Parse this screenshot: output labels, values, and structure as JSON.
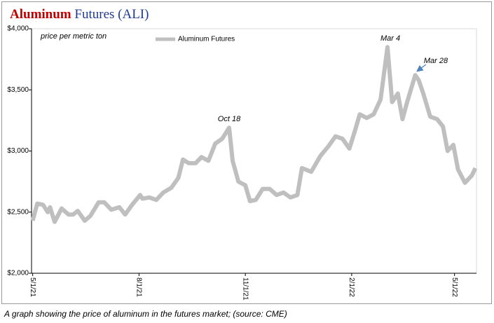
{
  "chart_data": {
    "type": "line",
    "title": {
      "highlight": "Aluminum",
      "rest": "Futures (ALI)"
    },
    "subtitle": "price per metric ton",
    "caption": "A graph showing the price of aluminum in the futures market; (source: CME)",
    "annotations": [
      "Oct 18",
      "Mar 4",
      "Mar 28"
    ],
    "x": [
      "2021-05-01",
      "2021-05-05",
      "2021-05-10",
      "2021-05-14",
      "2021-05-16",
      "2021-05-20",
      "2021-05-26",
      "2021-06-01",
      "2021-06-05",
      "2021-06-09",
      "2021-06-15",
      "2021-06-20",
      "2021-06-27",
      "2021-07-02",
      "2021-07-08",
      "2021-07-15",
      "2021-07-20",
      "2021-07-26",
      "2021-08-02",
      "2021-08-04",
      "2021-08-10",
      "2021-08-16",
      "2021-08-22",
      "2021-08-29",
      "2021-09-04",
      "2021-09-08",
      "2021-09-13",
      "2021-09-19",
      "2021-09-24",
      "2021-09-30",
      "2021-10-06",
      "2021-10-12",
      "2021-10-18",
      "2021-10-21",
      "2021-10-26",
      "2021-11-01",
      "2021-11-05",
      "2021-11-10",
      "2021-11-16",
      "2021-11-22",
      "2021-11-28",
      "2021-12-04",
      "2021-12-10",
      "2021-12-16",
      "2021-12-20",
      "2021-12-28",
      "2022-01-05",
      "2022-01-12",
      "2022-01-18",
      "2022-01-24",
      "2022-01-30",
      "2022-02-04",
      "2022-02-08",
      "2022-02-14",
      "2022-02-20",
      "2022-02-26",
      "2022-03-04",
      "2022-03-08",
      "2022-03-13",
      "2022-03-17",
      "2022-03-21",
      "2022-03-28",
      "2022-03-31",
      "2022-04-04",
      "2022-04-10",
      "2022-04-16",
      "2022-04-21",
      "2022-04-25",
      "2022-04-30",
      "2022-05-04",
      "2022-05-10",
      "2022-05-16",
      "2022-05-19"
    ],
    "series": [
      {
        "name": "Aluminum Futures",
        "color": "#bfbfbf",
        "values": [
          2430,
          2570,
          2560,
          2500,
          2540,
          2420,
          2530,
          2480,
          2480,
          2510,
          2430,
          2470,
          2580,
          2580,
          2520,
          2540,
          2480,
          2560,
          2640,
          2610,
          2620,
          2600,
          2660,
          2700,
          2780,
          2930,
          2900,
          2900,
          2950,
          2920,
          3060,
          3100,
          3190,
          2920,
          2750,
          2720,
          2590,
          2600,
          2690,
          2690,
          2640,
          2660,
          2620,
          2640,
          2860,
          2830,
          2960,
          3040,
          3120,
          3100,
          3020,
          3170,
          3300,
          3270,
          3300,
          3420,
          3850,
          3400,
          3470,
          3260,
          3400,
          3620,
          3580,
          3470,
          3280,
          3260,
          3200,
          3000,
          3050,
          2850,
          2740,
          2800,
          2860
        ]
      }
    ],
    "xlim": [
      "2021-04-30",
      "2022-05-20"
    ],
    "xticks": [
      {
        "value": "2021-05-01",
        "label": "5/1/21"
      },
      {
        "value": "2021-08-01",
        "label": "8/1/21"
      },
      {
        "value": "2021-11-01",
        "label": "11/1/21"
      },
      {
        "value": "2022-02-01",
        "label": "2/1/22"
      },
      {
        "value": "2022-05-01",
        "label": "5/1/22"
      }
    ],
    "ylim": [
      2000,
      4000
    ],
    "yticks": [
      {
        "value": 2000,
        "label": "$2,000"
      },
      {
        "value": 2500,
        "label": "$2,500"
      },
      {
        "value": 3000,
        "label": "$3,000"
      },
      {
        "value": 3500,
        "label": "$3,500"
      },
      {
        "value": 4000,
        "label": "$4,000"
      }
    ],
    "grid": false
  }
}
